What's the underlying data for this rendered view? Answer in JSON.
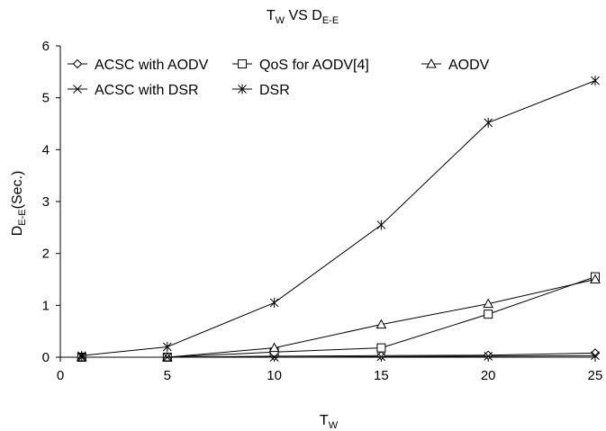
{
  "chart_data": {
    "type": "line",
    "title": {
      "main": "T",
      "main_sub": "W",
      "middle": " VS D",
      "end_sub": "E-E"
    },
    "xlabel": {
      "main": "T",
      "sub": "W"
    },
    "ylabel": {
      "main": "D",
      "sub": "E-E",
      "rest": "(Sec.)"
    },
    "xlim": [
      0,
      25
    ],
    "ylim": [
      0,
      6
    ],
    "x_ticks": [
      "0",
      "5",
      "10",
      "15",
      "20",
      "25"
    ],
    "y_ticks": [
      "0",
      "1",
      "2",
      "3",
      "4",
      "5",
      "6"
    ],
    "grid": false,
    "legend_position": "top",
    "series": [
      {
        "name": "ACSC with AODV",
        "marker": "diamond",
        "x": [
          1,
          5,
          10,
          15,
          20,
          25
        ],
        "y": [
          0.0,
          0.0,
          0.02,
          0.03,
          0.04,
          0.08
        ]
      },
      {
        "name": "QoS for AODV[4]",
        "marker": "square",
        "x": [
          1,
          5,
          10,
          15,
          20,
          25
        ],
        "y": [
          0.0,
          0.0,
          0.1,
          0.18,
          0.83,
          1.55
        ]
      },
      {
        "name": "AODV",
        "marker": "triangle",
        "x": [
          1,
          5,
          10,
          15,
          20,
          25
        ],
        "y": [
          0.0,
          0.0,
          0.18,
          0.63,
          1.03,
          1.5
        ]
      },
      {
        "name": "ACSC with DSR",
        "marker": "x",
        "x": [
          1,
          5,
          10,
          15,
          20,
          25
        ],
        "y": [
          0.0,
          0.0,
          0.0,
          0.01,
          0.02,
          0.03
        ]
      },
      {
        "name": "DSR",
        "marker": "asterisk",
        "x": [
          1,
          5,
          10,
          15,
          20,
          25
        ],
        "y": [
          0.03,
          0.2,
          1.05,
          2.55,
          4.52,
          5.33
        ]
      }
    ]
  }
}
